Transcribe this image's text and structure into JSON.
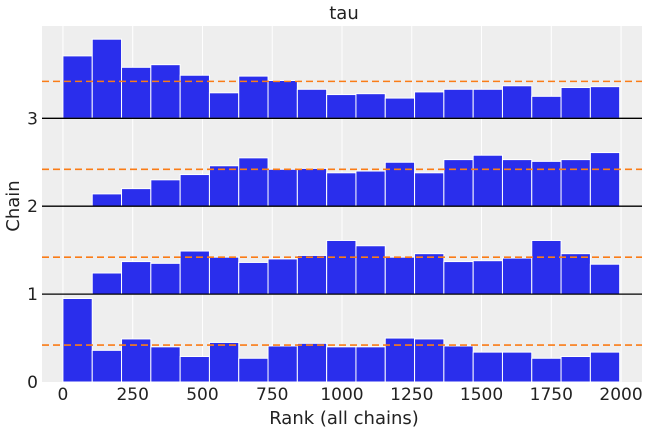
{
  "chart_data": {
    "type": "bar",
    "title": "tau",
    "xlabel": "Rank (all chains)",
    "ylabel": "Chain",
    "xlim": [
      -75,
      2075
    ],
    "ylim": [
      0,
      4.05
    ],
    "x_ticks": [
      0,
      250,
      500,
      750,
      1000,
      1250,
      1500,
      1750,
      2000
    ],
    "y_ticks": [
      0,
      1,
      2,
      3
    ],
    "grid": true,
    "bin_edges": [
      0,
      105,
      210,
      315,
      420,
      525,
      630,
      735,
      840,
      945,
      1050,
      1155,
      1260,
      1365,
      1470,
      1575,
      1680,
      1785,
      1890,
      1995
    ],
    "bar_color": "#2a2eec",
    "reference_line_color": "#fa7c17",
    "background_color": "#eeeeee",
    "series": [
      {
        "name": "0",
        "offset": 0,
        "reference": 0.42,
        "values": [
          0.95,
          0.36,
          0.49,
          0.4,
          0.29,
          0.45,
          0.27,
          0.41,
          0.44,
          0.4,
          0.4,
          0.5,
          0.49,
          0.41,
          0.34,
          0.34,
          0.27,
          0.29,
          0.34
        ]
      },
      {
        "name": "1",
        "offset": 1,
        "reference": 0.42,
        "values": [
          0.0,
          0.24,
          0.37,
          0.35,
          0.49,
          0.42,
          0.36,
          0.4,
          0.44,
          0.61,
          0.55,
          0.42,
          0.46,
          0.37,
          0.38,
          0.41,
          0.61,
          0.46,
          0.34
        ]
      },
      {
        "name": "2",
        "offset": 2,
        "reference": 0.42,
        "values": [
          0.0,
          0.14,
          0.2,
          0.3,
          0.36,
          0.46,
          0.55,
          0.42,
          0.43,
          0.38,
          0.4,
          0.5,
          0.38,
          0.53,
          0.58,
          0.53,
          0.51,
          0.53,
          0.61
        ]
      },
      {
        "name": "3",
        "offset": 3,
        "reference": 0.42,
        "values": [
          0.71,
          0.9,
          0.58,
          0.61,
          0.49,
          0.29,
          0.48,
          0.43,
          0.33,
          0.27,
          0.28,
          0.23,
          0.3,
          0.33,
          0.33,
          0.37,
          0.25,
          0.35,
          0.36
        ]
      }
    ]
  }
}
